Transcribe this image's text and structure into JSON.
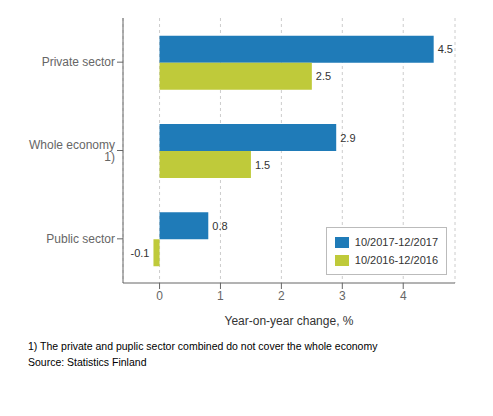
{
  "chart_data": {
    "type": "bar",
    "orientation": "horizontal",
    "categories": [
      "Private sector",
      "Whole economy 1)",
      "Public sector"
    ],
    "series": [
      {
        "name": "10/2017-12/2017",
        "color": "#1F7BB8",
        "values": [
          4.5,
          2.9,
          0.8
        ]
      },
      {
        "name": "10/2016-12/2016",
        "color": "#BFCA3A",
        "values": [
          2.5,
          1.5,
          -0.1
        ]
      }
    ],
    "xlabel": "Year-on-year change, %",
    "xlim": [
      -0.6,
      4.85
    ],
    "xticks": [
      0,
      1,
      2,
      3,
      4
    ],
    "grid": true,
    "legend": "lower right",
    "data_labels": true,
    "annotations": [
      "1) The private and puplic sector combined do not cover the whole economy",
      "Source: Statistics Finland"
    ]
  }
}
